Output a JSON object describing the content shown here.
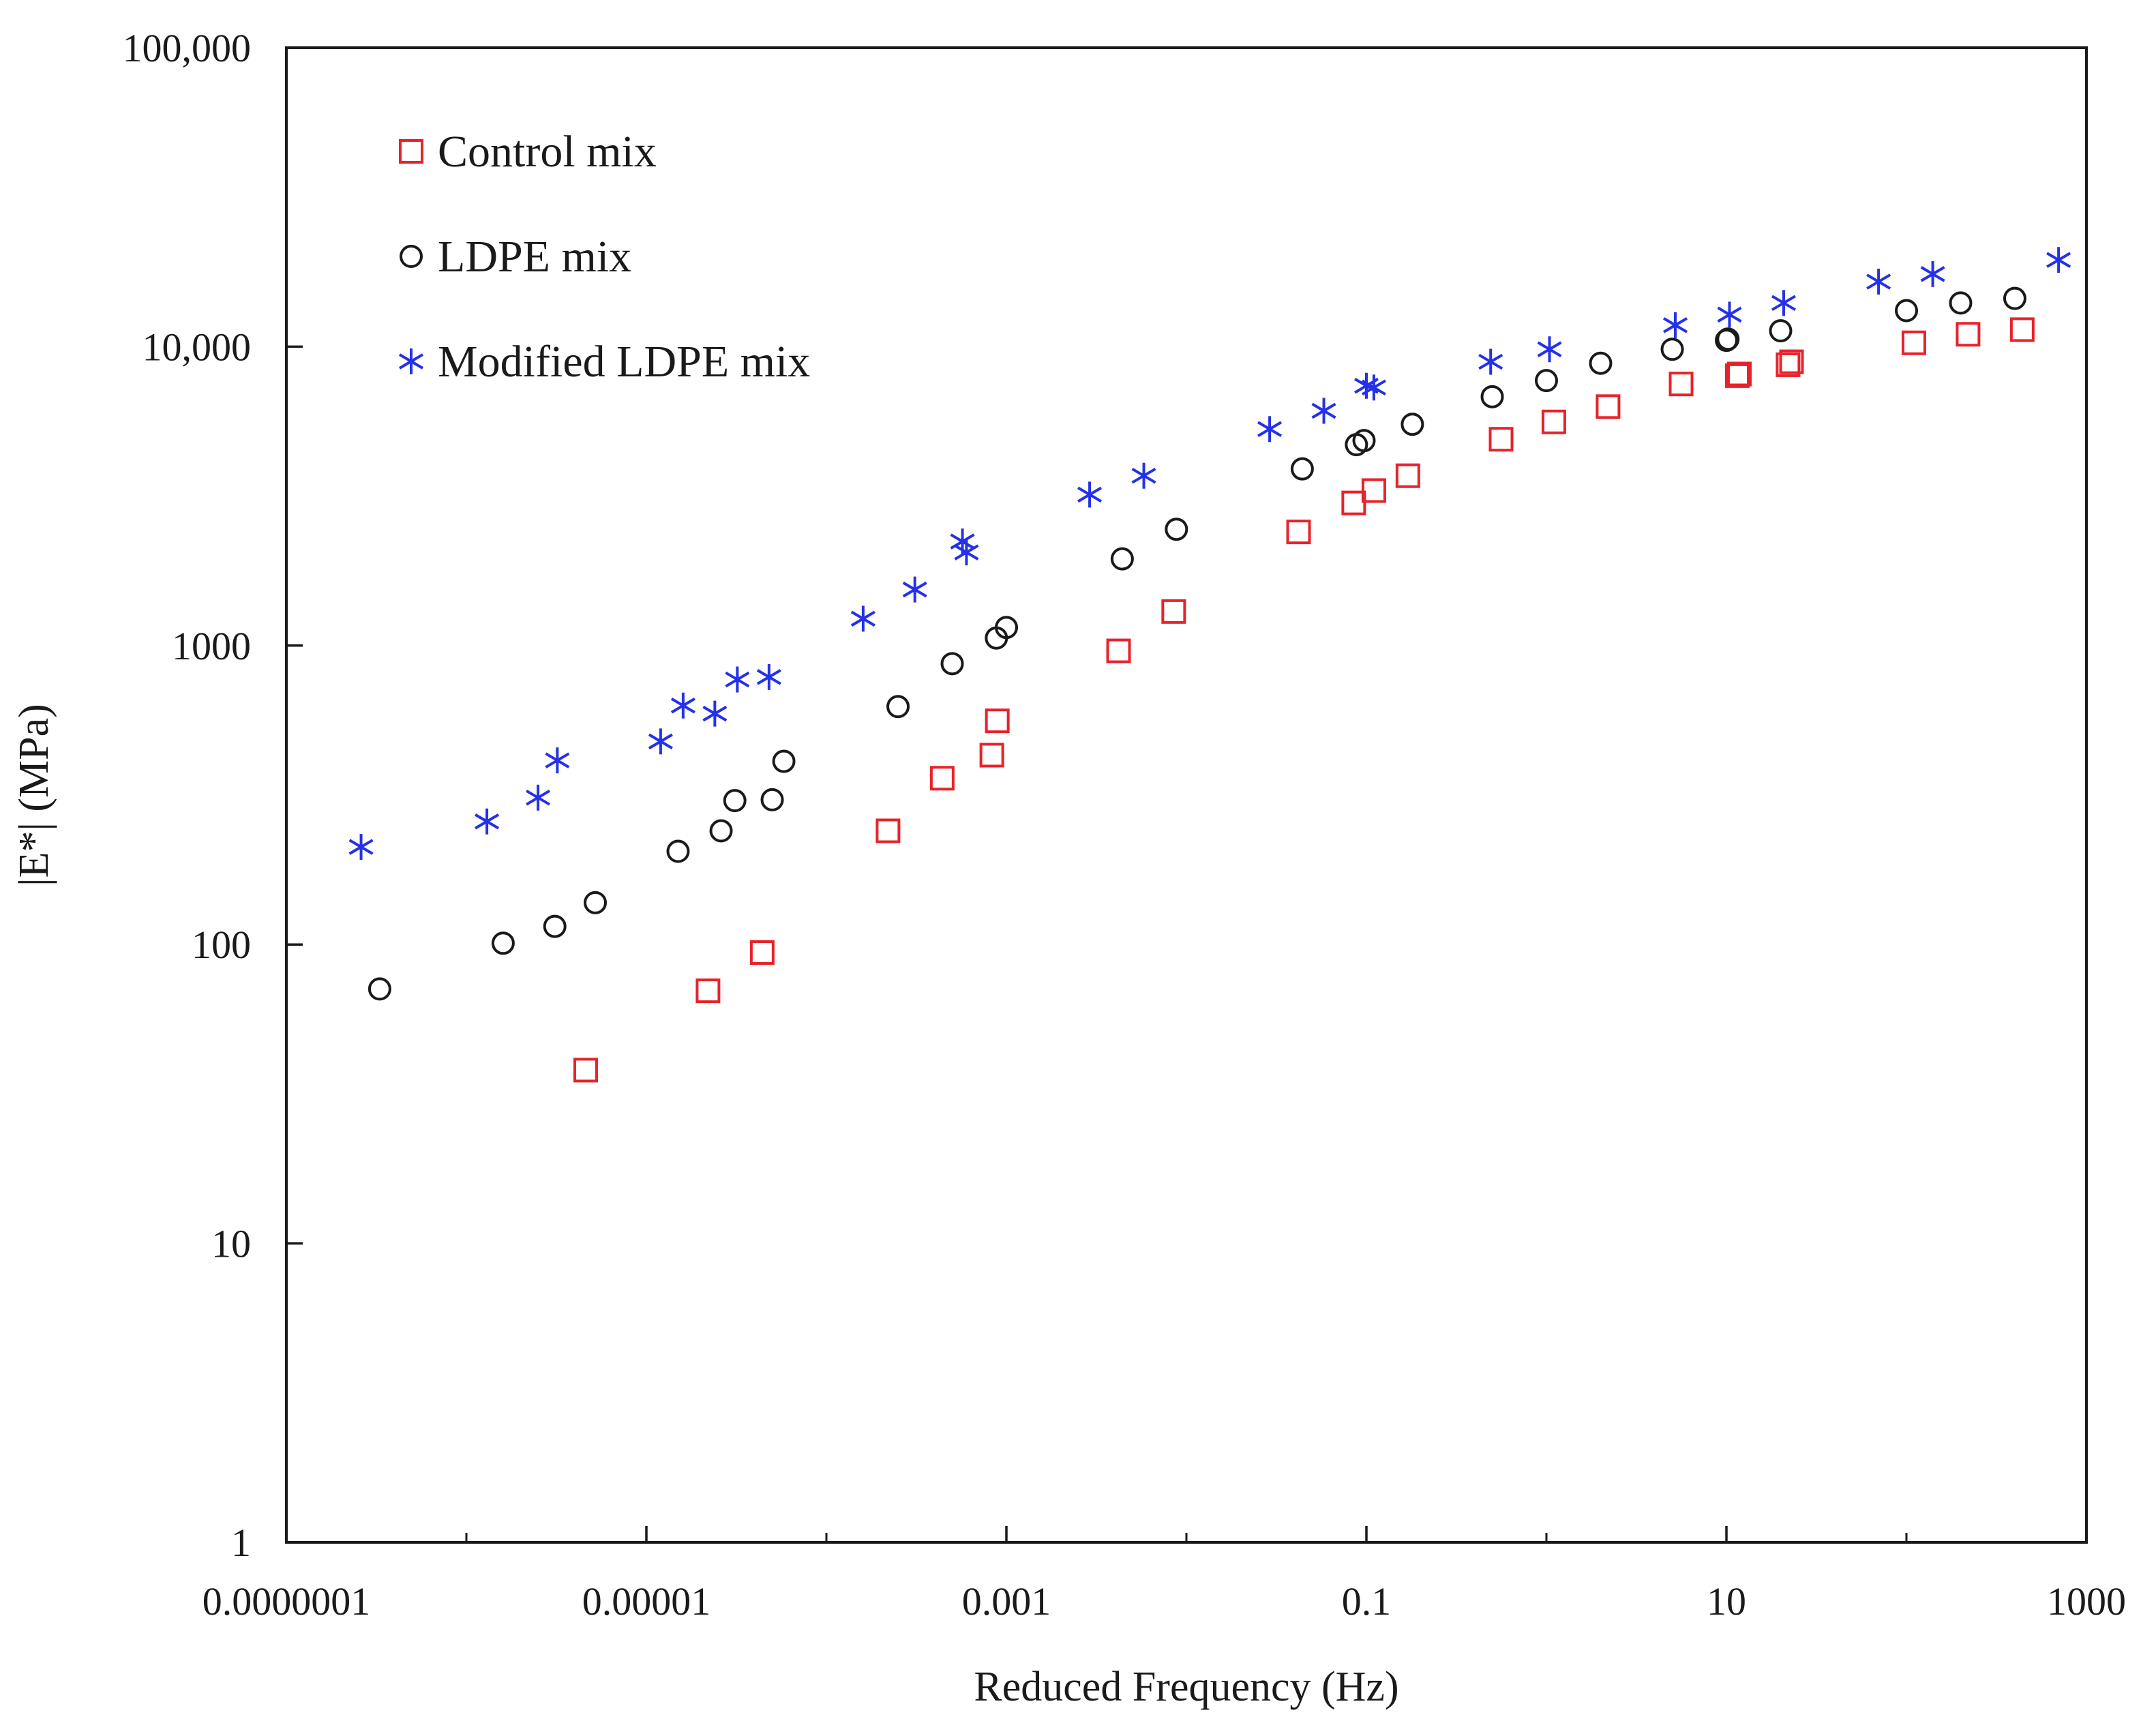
{
  "chart_data": {
    "type": "scatter",
    "title": "",
    "xlabel": "Reduced Frequency (Hz)",
    "ylabel": "|E*| (MPa)",
    "x_scale": "log",
    "y_scale": "log",
    "xlim": [
      1e-07,
      1000
    ],
    "ylim": [
      1,
      100000
    ],
    "grid": false,
    "legend_position": "top-left",
    "x_ticks": [
      {
        "value": 1e-07,
        "label": "0.0000001"
      },
      {
        "value": 1e-05,
        "label": "0.00001"
      },
      {
        "value": 0.001,
        "label": "0.001"
      },
      {
        "value": 0.1,
        "label": "0.1"
      },
      {
        "value": 10,
        "label": "10"
      },
      {
        "value": 1000,
        "label": "1000"
      }
    ],
    "y_ticks": [
      {
        "value": 1,
        "label": "1"
      },
      {
        "value": 10,
        "label": "10"
      },
      {
        "value": 100,
        "label": "100"
      },
      {
        "value": 1000,
        "label": "1000"
      },
      {
        "value": 10000,
        "label": "10,000"
      },
      {
        "value": 100000,
        "label": "100,000"
      }
    ],
    "series": [
      {
        "name": "Control mix",
        "marker": "square",
        "color": "#e8222a",
        "points": [
          [
            4.6e-06,
            38
          ],
          [
            2.2e-05,
            70
          ],
          [
            4.4e-05,
            94
          ],
          [
            0.00022,
            240
          ],
          [
            0.00044,
            360
          ],
          [
            0.00083,
            430
          ],
          [
            0.00089,
            560
          ],
          [
            0.0042,
            960
          ],
          [
            0.0085,
            1300
          ],
          [
            0.042,
            2400
          ],
          [
            0.085,
            3000
          ],
          [
            0.11,
            3300
          ],
          [
            0.17,
            3700
          ],
          [
            0.56,
            4900
          ],
          [
            1.1,
            5600
          ],
          [
            2.2,
            6300
          ],
          [
            5.6,
            7500
          ],
          [
            11.5,
            8000
          ],
          [
            11.8,
            8100
          ],
          [
            22,
            8700
          ],
          [
            23,
            8900
          ],
          [
            110,
            10300
          ],
          [
            220,
            11000
          ],
          [
            440,
            11400
          ]
        ]
      },
      {
        "name": "LDPE mix",
        "marker": "circle",
        "color": "#1a1a1a",
        "points": [
          [
            3.3e-07,
            71
          ],
          [
            1.6e-06,
            101
          ],
          [
            3.1e-06,
            115
          ],
          [
            5.2e-06,
            138
          ],
          [
            1.5e-05,
            205
          ],
          [
            2.6e-05,
            240
          ],
          [
            3.1e-05,
            303
          ],
          [
            5e-05,
            305
          ],
          [
            5.8e-05,
            410
          ],
          [
            0.00025,
            625
          ],
          [
            0.0005,
            870
          ],
          [
            0.00088,
            1060
          ],
          [
            0.001,
            1150
          ],
          [
            0.0044,
            1950
          ],
          [
            0.0088,
            2450
          ],
          [
            0.044,
            3900
          ],
          [
            0.088,
            4700
          ],
          [
            0.097,
            4850
          ],
          [
            0.18,
            5500
          ],
          [
            0.5,
            6800
          ],
          [
            1,
            7700
          ],
          [
            2,
            8800
          ],
          [
            5,
            9800
          ],
          [
            10,
            10500
          ],
          [
            10.2,
            10600
          ],
          [
            20,
            11300
          ],
          [
            100,
            13200
          ],
          [
            200,
            14000
          ],
          [
            400,
            14500
          ]
        ]
      },
      {
        "name": "Modified LDPE mix",
        "marker": "asterisk",
        "color": "#2431e8",
        "points": [
          [
            2.6e-07,
            212
          ],
          [
            1.3e-06,
            258
          ],
          [
            2.5e-06,
            310
          ],
          [
            3.2e-06,
            413
          ],
          [
            1.2e-05,
            478
          ],
          [
            1.6e-05,
            630
          ],
          [
            2.4e-05,
            592
          ],
          [
            3.2e-05,
            770
          ],
          [
            4.8e-05,
            785
          ],
          [
            0.00016,
            1230
          ],
          [
            0.00031,
            1540
          ],
          [
            0.00057,
            2230
          ],
          [
            0.0006,
            2050
          ],
          [
            0.0029,
            3200
          ],
          [
            0.0058,
            3700
          ],
          [
            0.029,
            5300
          ],
          [
            0.058,
            6100
          ],
          [
            0.1,
            7400
          ],
          [
            0.11,
            7300
          ],
          [
            0.49,
            8900
          ],
          [
            1.04,
            9800
          ],
          [
            5.2,
            11800
          ],
          [
            10.4,
            12800
          ],
          [
            20.8,
            14000
          ],
          [
            70,
            16500
          ],
          [
            140,
            17500
          ],
          [
            700,
            19500
          ]
        ]
      }
    ]
  }
}
